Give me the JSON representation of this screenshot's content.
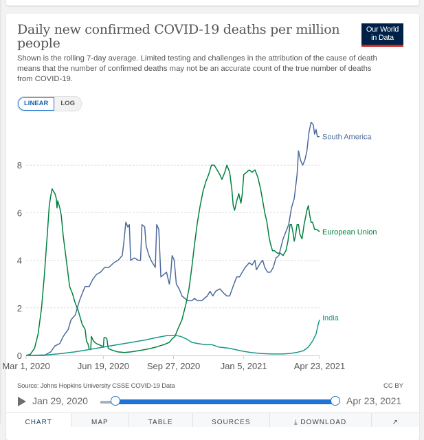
{
  "header": {
    "title": "Daily new confirmed COVID-19 deaths per million people",
    "subtitle": "Shown is the rolling 7-day average. Limited testing and challenges in the attribution of the cause of death means that the number of confirmed deaths may not be an accurate count of the true number of deaths from COVID-19.",
    "logo_line1": "Our World",
    "logo_line2": "in Data"
  },
  "controls": {
    "linear_label": "LINEAR",
    "log_label": "LOG",
    "active_scale": "linear"
  },
  "footer": {
    "source": "Source: Johns Hopkins University CSSE COVID-19 Data",
    "license": "CC BY"
  },
  "timeline": {
    "start_label": "Jan 29, 2020",
    "end_label": "Apr 23, 2021",
    "range_start_fraction": 0.07,
    "range_end_fraction": 1.0
  },
  "tabs": [
    {
      "label": "CHART",
      "icon": ""
    },
    {
      "label": "MAP",
      "icon": ""
    },
    {
      "label": "TABLE",
      "icon": ""
    },
    {
      "label": "SOURCES",
      "icon": ""
    },
    {
      "label": "DOWNLOAD",
      "icon": "download-icon"
    },
    {
      "label": "",
      "icon": "share-icon"
    }
  ],
  "colors": {
    "south_america": "#4c6a9c",
    "european_union": "#00813f",
    "india": "#18968a",
    "accent": "#1d74d6",
    "logo_bg": "#002147",
    "logo_bar": "#ce261e"
  },
  "chart_data": {
    "type": "line",
    "title": "Daily new confirmed COVID-19 deaths per million people",
    "xlabel": "",
    "ylabel": "",
    "x_unit": "days since Mar 1, 2020",
    "xlim": [
      0,
      418
    ],
    "ylim": [
      0,
      10
    ],
    "y_ticks": [
      0,
      2,
      4,
      6,
      8
    ],
    "x_ticks": [
      {
        "day": 0,
        "label": "Mar 1, 2020"
      },
      {
        "day": 110,
        "label": "Jun 19, 2020"
      },
      {
        "day": 210,
        "label": "Sep 27, 2020"
      },
      {
        "day": 310,
        "label": "Jan 5, 2021"
      },
      {
        "day": 418,
        "label": "Apr 23, 2021"
      }
    ],
    "grid": "horizontal-dashed",
    "legend": "inline-right",
    "series": [
      {
        "name": "South America",
        "color_key": "south_america",
        "points": [
          [
            0,
            0
          ],
          [
            26,
            0
          ],
          [
            35,
            0.15
          ],
          [
            41,
            0.4
          ],
          [
            48,
            0.5
          ],
          [
            53,
            0.8
          ],
          [
            60,
            1.1
          ],
          [
            64,
            1.5
          ],
          [
            70,
            1.7
          ],
          [
            76,
            2.3
          ],
          [
            80,
            2.6
          ],
          [
            84,
            2.9
          ],
          [
            90,
            2.9
          ],
          [
            95,
            3.2
          ],
          [
            100,
            3.4
          ],
          [
            106,
            3.5
          ],
          [
            112,
            3.7
          ],
          [
            118,
            3.7
          ],
          [
            125,
            3.9
          ],
          [
            131,
            4.0
          ],
          [
            137,
            4.2
          ],
          [
            139,
            4.7
          ],
          [
            142,
            5.6
          ],
          [
            145,
            5.4
          ],
          [
            147,
            5.5
          ],
          [
            149,
            4.0
          ],
          [
            154,
            4.1
          ],
          [
            160,
            4.0
          ],
          [
            163,
            4.0
          ],
          [
            165,
            5.5
          ],
          [
            169,
            5.4
          ],
          [
            171,
            4.6
          ],
          [
            175,
            4.2
          ],
          [
            178,
            4.0
          ],
          [
            182,
            3.8
          ],
          [
            184,
            3.7
          ],
          [
            186,
            5.5
          ],
          [
            189,
            5.3
          ],
          [
            192,
            3.3
          ],
          [
            196,
            3.4
          ],
          [
            200,
            3.5
          ],
          [
            204,
            3.0
          ],
          [
            206,
            3.4
          ],
          [
            208,
            4.2
          ],
          [
            211,
            4.0
          ],
          [
            214,
            3.0
          ],
          [
            218,
            2.8
          ],
          [
            222,
            2.5
          ],
          [
            226,
            2.4
          ],
          [
            230,
            2.3
          ],
          [
            236,
            2.3
          ],
          [
            240,
            2.4
          ],
          [
            244,
            2.3
          ],
          [
            250,
            2.3
          ],
          [
            254,
            2.4
          ],
          [
            258,
            2.5
          ],
          [
            262,
            2.7
          ],
          [
            266,
            2.5
          ],
          [
            270,
            2.7
          ],
          [
            276,
            2.8
          ],
          [
            282,
            2.6
          ],
          [
            286,
            2.5
          ],
          [
            290,
            2.5
          ],
          [
            296,
            3.0
          ],
          [
            300,
            3.3
          ],
          [
            304,
            3.3
          ],
          [
            308,
            3.5
          ],
          [
            312,
            3.7
          ],
          [
            318,
            3.9
          ],
          [
            322,
            3.8
          ],
          [
            326,
            4.0
          ],
          [
            328,
            3.6
          ],
          [
            330,
            3.7
          ],
          [
            334,
            3.9
          ],
          [
            337,
            4.0
          ],
          [
            340,
            3.7
          ],
          [
            344,
            3.5
          ],
          [
            348,
            3.5
          ],
          [
            352,
            3.7
          ],
          [
            356,
            4.1
          ],
          [
            360,
            4.2
          ],
          [
            366,
            4.9
          ],
          [
            370,
            5.2
          ],
          [
            374,
            5.5
          ],
          [
            378,
            6.2
          ],
          [
            382,
            6.6
          ],
          [
            386,
            7.6
          ],
          [
            388,
            8.6
          ],
          [
            391,
            8.2
          ],
          [
            394,
            8.0
          ],
          [
            397,
            8.2
          ],
          [
            400,
            8.6
          ],
          [
            403,
            9.4
          ],
          [
            406,
            9.8
          ],
          [
            409,
            9.7
          ],
          [
            411,
            9.3
          ],
          [
            413,
            9.5
          ],
          [
            415,
            9.2
          ],
          [
            418,
            9.2
          ]
        ]
      },
      {
        "name": "European Union",
        "color_key": "european_union",
        "points": [
          [
            0,
            0
          ],
          [
            6,
            0.05
          ],
          [
            12,
            0.3
          ],
          [
            17,
            0.9
          ],
          [
            22,
            2.0
          ],
          [
            26,
            3.4
          ],
          [
            30,
            5.0
          ],
          [
            33,
            6.3
          ],
          [
            35,
            6.7
          ],
          [
            37,
            7.0
          ],
          [
            39,
            6.9
          ],
          [
            41,
            6.8
          ],
          [
            43,
            6.6
          ],
          [
            44,
            6.2
          ],
          [
            45,
            6.5
          ],
          [
            48,
            6.2
          ],
          [
            50,
            5.9
          ],
          [
            53,
            5.0
          ],
          [
            56,
            4.3
          ],
          [
            59,
            3.6
          ],
          [
            62,
            2.9
          ],
          [
            66,
            2.6
          ],
          [
            70,
            2.2
          ],
          [
            74,
            1.9
          ],
          [
            77,
            1.6
          ],
          [
            80,
            1.3
          ],
          [
            84,
            1.1
          ],
          [
            86,
            0.6
          ],
          [
            88,
            0.5
          ],
          [
            90,
            0.25
          ],
          [
            92,
            0.25
          ],
          [
            93,
            0.8
          ],
          [
            96,
            0.6
          ],
          [
            100,
            0.5
          ],
          [
            104,
            0.45
          ],
          [
            108,
            0.4
          ],
          [
            110,
            0.35
          ],
          [
            111,
            0.75
          ],
          [
            113,
            0.75
          ],
          [
            115,
            0.7
          ],
          [
            117,
            0.3
          ],
          [
            120,
            0.25
          ],
          [
            130,
            0.15
          ],
          [
            140,
            0.12
          ],
          [
            150,
            0.15
          ],
          [
            160,
            0.2
          ],
          [
            170,
            0.25
          ],
          [
            178,
            0.3
          ],
          [
            185,
            0.35
          ],
          [
            190,
            0.4
          ],
          [
            196,
            0.45
          ],
          [
            200,
            0.5
          ],
          [
            204,
            0.55
          ],
          [
            208,
            0.7
          ],
          [
            212,
            0.8
          ],
          [
            216,
            1.1
          ],
          [
            222,
            1.5
          ],
          [
            228,
            2.2
          ],
          [
            232,
            2.8
          ],
          [
            236,
            3.7
          ],
          [
            240,
            4.7
          ],
          [
            244,
            5.6
          ],
          [
            248,
            6.3
          ],
          [
            252,
            6.9
          ],
          [
            256,
            7.3
          ],
          [
            260,
            7.6
          ],
          [
            264,
            8.0
          ],
          [
            268,
            8.0
          ],
          [
            272,
            7.8
          ],
          [
            276,
            7.6
          ],
          [
            279,
            7.4
          ],
          [
            283,
            7.7
          ],
          [
            286,
            8.0
          ],
          [
            290,
            7.7
          ],
          [
            293,
            7.0
          ],
          [
            295,
            6.3
          ],
          [
            297,
            6.1
          ],
          [
            300,
            6.5
          ],
          [
            303,
            6.8
          ],
          [
            306,
            6.4
          ],
          [
            308,
            6.8
          ],
          [
            310,
            7.6
          ],
          [
            314,
            7.7
          ],
          [
            318,
            7.8
          ],
          [
            322,
            7.7
          ],
          [
            326,
            7.8
          ],
          [
            330,
            7.5
          ],
          [
            334,
            7.0
          ],
          [
            337,
            6.5
          ],
          [
            340,
            6.0
          ],
          [
            343,
            5.6
          ],
          [
            346,
            5.0
          ],
          [
            348,
            4.7
          ],
          [
            351,
            4.4
          ],
          [
            354,
            4.4
          ],
          [
            358,
            4.3
          ],
          [
            362,
            4.3
          ],
          [
            366,
            4.2
          ],
          [
            370,
            4.4
          ],
          [
            373,
            4.8
          ],
          [
            376,
            5.5
          ],
          [
            378,
            5.5
          ],
          [
            380,
            5.2
          ],
          [
            382,
            4.8
          ],
          [
            384,
            5.1
          ],
          [
            386,
            5.5
          ],
          [
            388,
            5.5
          ],
          [
            390,
            5.1
          ],
          [
            393,
            4.9
          ],
          [
            396,
            5.5
          ],
          [
            398,
            5.8
          ],
          [
            400,
            6.1
          ],
          [
            402,
            6.3
          ],
          [
            404,
            5.9
          ],
          [
            406,
            5.6
          ],
          [
            408,
            5.6
          ],
          [
            411,
            5.3
          ],
          [
            414,
            5.3
          ],
          [
            418,
            5.2
          ]
        ]
      },
      {
        "name": "India",
        "color_key": "india",
        "points": [
          [
            0,
            0
          ],
          [
            30,
            0.02
          ],
          [
            50,
            0.08
          ],
          [
            70,
            0.15
          ],
          [
            90,
            0.25
          ],
          [
            110,
            0.35
          ],
          [
            130,
            0.45
          ],
          [
            150,
            0.55
          ],
          [
            170,
            0.65
          ],
          [
            185,
            0.75
          ],
          [
            200,
            0.83
          ],
          [
            212,
            0.85
          ],
          [
            220,
            0.8
          ],
          [
            228,
            0.7
          ],
          [
            236,
            0.55
          ],
          [
            245,
            0.5
          ],
          [
            255,
            0.45
          ],
          [
            265,
            0.45
          ],
          [
            275,
            0.35
          ],
          [
            290,
            0.3
          ],
          [
            305,
            0.2
          ],
          [
            320,
            0.12
          ],
          [
            335,
            0.08
          ],
          [
            350,
            0.06
          ],
          [
            365,
            0.06
          ],
          [
            375,
            0.08
          ],
          [
            385,
            0.12
          ],
          [
            395,
            0.2
          ],
          [
            402,
            0.35
          ],
          [
            408,
            0.6
          ],
          [
            413,
            0.9
          ],
          [
            416,
            1.3
          ],
          [
            418,
            1.5
          ]
        ]
      }
    ]
  }
}
